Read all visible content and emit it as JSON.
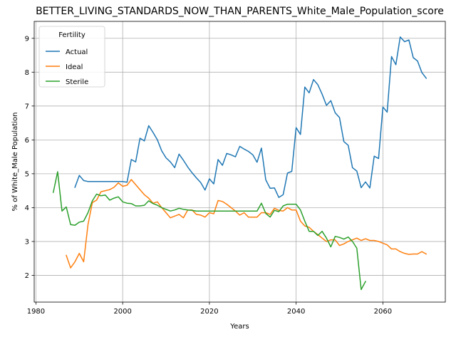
{
  "chart_data": {
    "type": "line",
    "title": "BETTER_LIVING_STANDARDS_NOW_THAN_PARENTS_White_Male_Population_score",
    "xlabel": "Years",
    "ylabel": "% of White_Male Population",
    "xlim": [
      1979.6,
      2074.4
    ],
    "ylim": [
      1.21,
      9.5
    ],
    "xticks": [
      1980,
      2000,
      2020,
      2040,
      2060
    ],
    "yticks": [
      2,
      3,
      4,
      5,
      6,
      7,
      8,
      9
    ],
    "grid": true,
    "legend": {
      "title": "Fertility",
      "placement": "top-left"
    },
    "series": [
      {
        "name": "Actual",
        "color": "#1f77b4",
        "x": [
          1989,
          1990,
          1991,
          1992,
          1993,
          1994,
          1995,
          1996,
          1997,
          1998,
          1999,
          2000,
          2001,
          2002,
          2003,
          2004,
          2005,
          2006,
          2007,
          2008,
          2009,
          2010,
          2011,
          2012,
          2013,
          2014,
          2015,
          2016,
          2017,
          2018,
          2019,
          2020,
          2021,
          2022,
          2023,
          2024,
          2025,
          2026,
          2027,
          2028,
          2029,
          2030,
          2031,
          2032,
          2033,
          2034,
          2035,
          2036,
          2037,
          2038,
          2039,
          2040,
          2041,
          2042,
          2043,
          2044,
          2045,
          2046,
          2047,
          2048,
          2049,
          2050,
          2051,
          2052,
          2053,
          2054,
          2055,
          2056,
          2057,
          2058,
          2059,
          2060,
          2061,
          2062,
          2063,
          2064,
          2065,
          2066,
          2067,
          2068,
          2069,
          2070
        ],
        "y": [
          4.6,
          4.95,
          4.8,
          4.77,
          4.77,
          4.77,
          4.77,
          4.77,
          4.77,
          4.77,
          4.77,
          4.77,
          4.75,
          5.42,
          5.35,
          6.05,
          5.97,
          6.42,
          6.22,
          6.0,
          5.68,
          5.47,
          5.35,
          5.18,
          5.58,
          5.4,
          5.2,
          5.03,
          4.88,
          4.74,
          4.52,
          4.85,
          4.7,
          5.42,
          5.25,
          5.6,
          5.56,
          5.5,
          5.81,
          5.73,
          5.66,
          5.56,
          5.34,
          5.76,
          4.82,
          4.57,
          4.58,
          4.3,
          4.38,
          5.02,
          5.07,
          6.36,
          6.16,
          7.56,
          7.39,
          7.78,
          7.63,
          7.35,
          7.02,
          7.16,
          6.8,
          6.66,
          5.95,
          5.84,
          5.18,
          5.08,
          4.59,
          4.76,
          4.58,
          5.52,
          5.45,
          6.97,
          6.82,
          8.46,
          8.22,
          9.04,
          8.9,
          8.95,
          8.43,
          8.33,
          7.99,
          7.82
        ]
      },
      {
        "name": "Ideal",
        "color": "#ff7f0e",
        "x": [
          1987,
          1988,
          1989,
          1990,
          1991,
          1992,
          1993,
          1994,
          1995,
          1996,
          1997,
          1998,
          1999,
          2000,
          2001,
          2002,
          2003,
          2004,
          2005,
          2006,
          2007,
          2008,
          2009,
          2010,
          2011,
          2012,
          2013,
          2014,
          2015,
          2016,
          2017,
          2018,
          2019,
          2020,
          2021,
          2022,
          2023,
          2024,
          2025,
          2026,
          2027,
          2028,
          2029,
          2030,
          2031,
          2032,
          2033,
          2034,
          2035,
          2036,
          2037,
          2038,
          2039,
          2040,
          2041,
          2042,
          2043,
          2044,
          2045,
          2046,
          2047,
          2048,
          2049,
          2050,
          2051,
          2052,
          2053,
          2054,
          2055,
          2056,
          2057,
          2058,
          2059,
          2060,
          2061,
          2062,
          2063,
          2064,
          2065,
          2066,
          2067,
          2068,
          2069,
          2070
        ],
        "y": [
          2.59,
          2.22,
          2.4,
          2.65,
          2.4,
          3.5,
          4.15,
          4.22,
          4.47,
          4.5,
          4.53,
          4.6,
          4.73,
          4.63,
          4.66,
          4.83,
          4.68,
          4.53,
          4.38,
          4.28,
          4.13,
          4.17,
          4.0,
          3.85,
          3.7,
          3.75,
          3.8,
          3.7,
          3.93,
          3.93,
          3.8,
          3.78,
          3.72,
          3.85,
          3.82,
          4.21,
          4.18,
          4.1,
          4.0,
          3.9,
          3.78,
          3.85,
          3.72,
          3.72,
          3.72,
          3.85,
          3.85,
          3.8,
          3.98,
          3.92,
          3.9,
          4.0,
          3.93,
          3.93,
          3.6,
          3.46,
          3.42,
          3.3,
          3.2,
          3.1,
          3.0,
          3.05,
          3.05,
          2.88,
          2.93,
          3.0,
          3.05,
          3.1,
          3.03,
          3.08,
          3.03,
          3.03,
          3.0,
          2.95,
          2.9,
          2.78,
          2.78,
          2.7,
          2.65,
          2.62,
          2.63,
          2.63,
          2.7,
          2.63
        ]
      },
      {
        "name": "Sterile",
        "color": "#2ca02c",
        "x": [
          1984,
          1985,
          1986,
          1987,
          1988,
          1989,
          1990,
          1991,
          1992,
          1993,
          1994,
          1995,
          1996,
          1997,
          1998,
          1999,
          2000,
          2001,
          2002,
          2003,
          2004,
          2005,
          2006,
          2007,
          2008,
          2009,
          2010,
          2011,
          2012,
          2013,
          2014,
          2015,
          2016,
          2017,
          2018,
          2019,
          2020,
          2021,
          2022,
          2023,
          2024,
          2025,
          2026,
          2027,
          2028,
          2029,
          2030,
          2031,
          2032,
          2033,
          2034,
          2035,
          2036,
          2037,
          2038,
          2039,
          2040,
          2041,
          2042,
          2043,
          2044,
          2045,
          2046,
          2047,
          2048,
          2049,
          2050,
          2051,
          2052,
          2053,
          2054,
          2055,
          2056
        ],
        "y": [
          4.45,
          5.06,
          3.9,
          4.02,
          3.5,
          3.48,
          3.57,
          3.6,
          3.85,
          4.2,
          4.4,
          4.35,
          4.37,
          4.22,
          4.28,
          4.32,
          4.17,
          4.13,
          4.12,
          4.05,
          4.05,
          4.07,
          4.2,
          4.12,
          4.07,
          4.0,
          3.95,
          3.9,
          3.93,
          3.98,
          3.95,
          3.93,
          3.92,
          3.9,
          3.9,
          3.9,
          3.9,
          3.9,
          3.9,
          3.9,
          3.9,
          3.9,
          3.9,
          3.9,
          3.9,
          3.9,
          3.9,
          3.9,
          4.13,
          3.83,
          3.72,
          3.92,
          3.88,
          4.05,
          4.1,
          4.1,
          4.1,
          3.93,
          3.6,
          3.3,
          3.3,
          3.18,
          3.3,
          3.1,
          2.84,
          3.15,
          3.12,
          3.07,
          3.13,
          3.0,
          2.8,
          1.58,
          1.82
        ]
      }
    ]
  }
}
